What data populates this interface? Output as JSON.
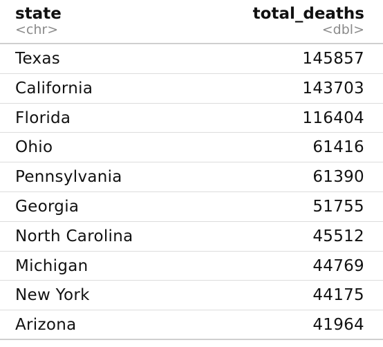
{
  "table": {
    "columns": [
      {
        "name": "state",
        "type": "<chr>"
      },
      {
        "name": "total_deaths",
        "type": "<dbl>"
      }
    ],
    "rows": [
      {
        "state": "Texas",
        "total_deaths": "145857"
      },
      {
        "state": "California",
        "total_deaths": "143703"
      },
      {
        "state": "Florida",
        "total_deaths": "116404"
      },
      {
        "state": "Ohio",
        "total_deaths": "61416"
      },
      {
        "state": "Pennsylvania",
        "total_deaths": "61390"
      },
      {
        "state": "Georgia",
        "total_deaths": "51755"
      },
      {
        "state": "North Carolina",
        "total_deaths": "45512"
      },
      {
        "state": "Michigan",
        "total_deaths": "44769"
      },
      {
        "state": "New York",
        "total_deaths": "44175"
      },
      {
        "state": "Arizona",
        "total_deaths": "41964"
      }
    ]
  }
}
